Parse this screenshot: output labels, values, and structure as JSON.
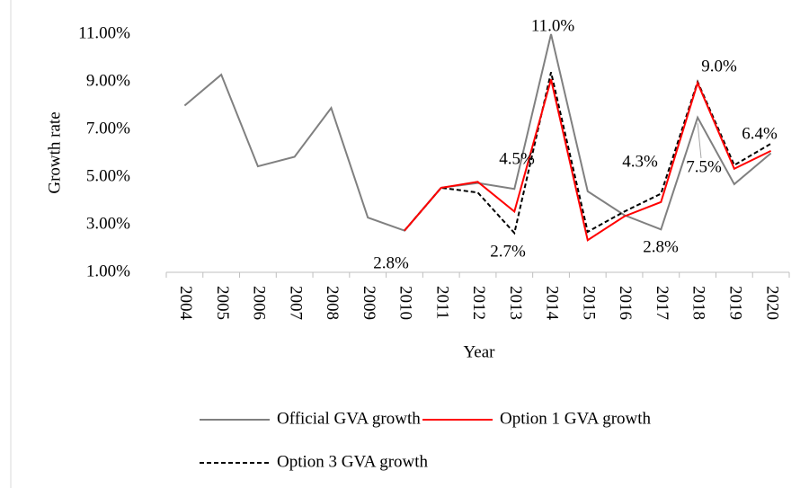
{
  "chart_data": {
    "type": "line",
    "x_label": "Year",
    "y_label": "Growth rate",
    "categories": [
      "2004",
      "2005",
      "2006",
      "2007",
      "2008",
      "2009",
      "2010",
      "2011",
      "2012",
      "2013",
      "2014",
      "2015",
      "2016",
      "2017",
      "2018",
      "2019",
      "2020"
    ],
    "ylim": [
      1,
      11
    ],
    "yticks": [
      {
        "value": 1,
        "label": "1.00%"
      },
      {
        "value": 3,
        "label": "3.00%"
      },
      {
        "value": 5,
        "label": "5.00%"
      },
      {
        "value": 7,
        "label": "7.00%"
      },
      {
        "value": 9,
        "label": "9.00%"
      },
      {
        "value": 11,
        "label": "11.00%"
      }
    ],
    "series": [
      {
        "name": "Official GVA growth",
        "color": "#808080",
        "dash": false,
        "values": [
          8.0,
          9.3,
          5.45,
          5.85,
          7.9,
          3.3,
          2.75,
          4.55,
          4.75,
          4.5,
          11.0,
          4.4,
          3.4,
          2.8,
          7.5,
          4.7,
          6.0
        ]
      },
      {
        "name": "Option 1 GVA growth",
        "color": "#ff0000",
        "dash": false,
        "values": [
          null,
          null,
          null,
          null,
          null,
          null,
          2.75,
          4.55,
          4.8,
          3.55,
          9.1,
          2.35,
          3.35,
          3.95,
          8.95,
          5.35,
          6.1
        ]
      },
      {
        "name": "Option 3 GVA growth",
        "color": "#000000",
        "dash": true,
        "values": [
          null,
          null,
          null,
          null,
          null,
          null,
          2.75,
          4.55,
          4.35,
          2.65,
          9.4,
          2.7,
          3.55,
          4.3,
          9.0,
          5.5,
          6.4
        ]
      }
    ],
    "annotations": [
      "2.8%",
      "4.5%",
      "2.7%",
      "11.0%",
      "4.3%",
      "2.8%",
      "9.0%",
      "7.5%",
      "6.4%"
    ],
    "legend": "bottom"
  }
}
